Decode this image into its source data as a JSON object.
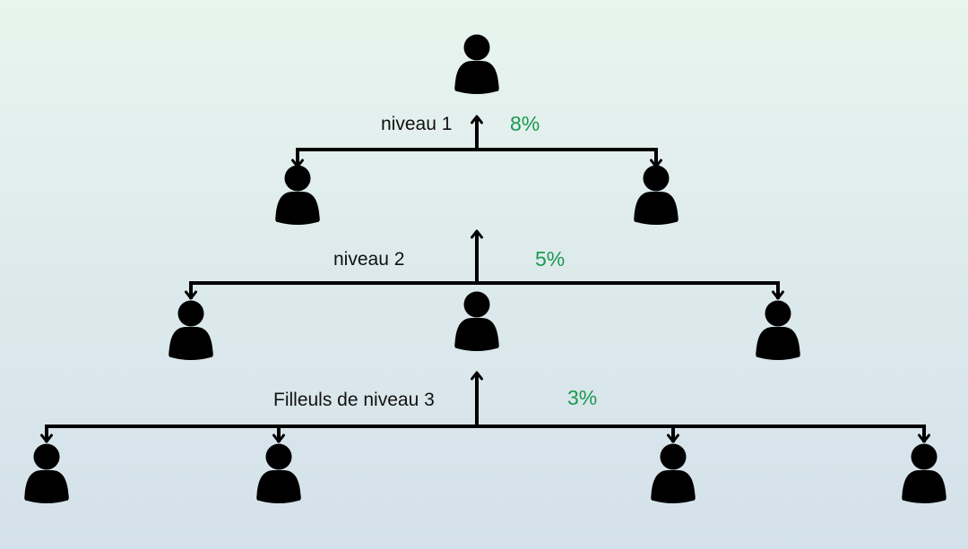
{
  "colors": {
    "line": "#000000",
    "person": "#000000",
    "percent": "#1a9a50"
  },
  "icons": {
    "person": "person-icon",
    "arrow_up": "arrow-up-icon",
    "arrow_down": "arrow-down-icon"
  },
  "levels": [
    {
      "label": "niveau 1",
      "percent": "8%",
      "children": 2
    },
    {
      "label": "niveau 2",
      "percent": "5%",
      "children": 3
    },
    {
      "label": "Filleuls de niveau 3",
      "percent": "3%",
      "children": 4
    }
  ]
}
